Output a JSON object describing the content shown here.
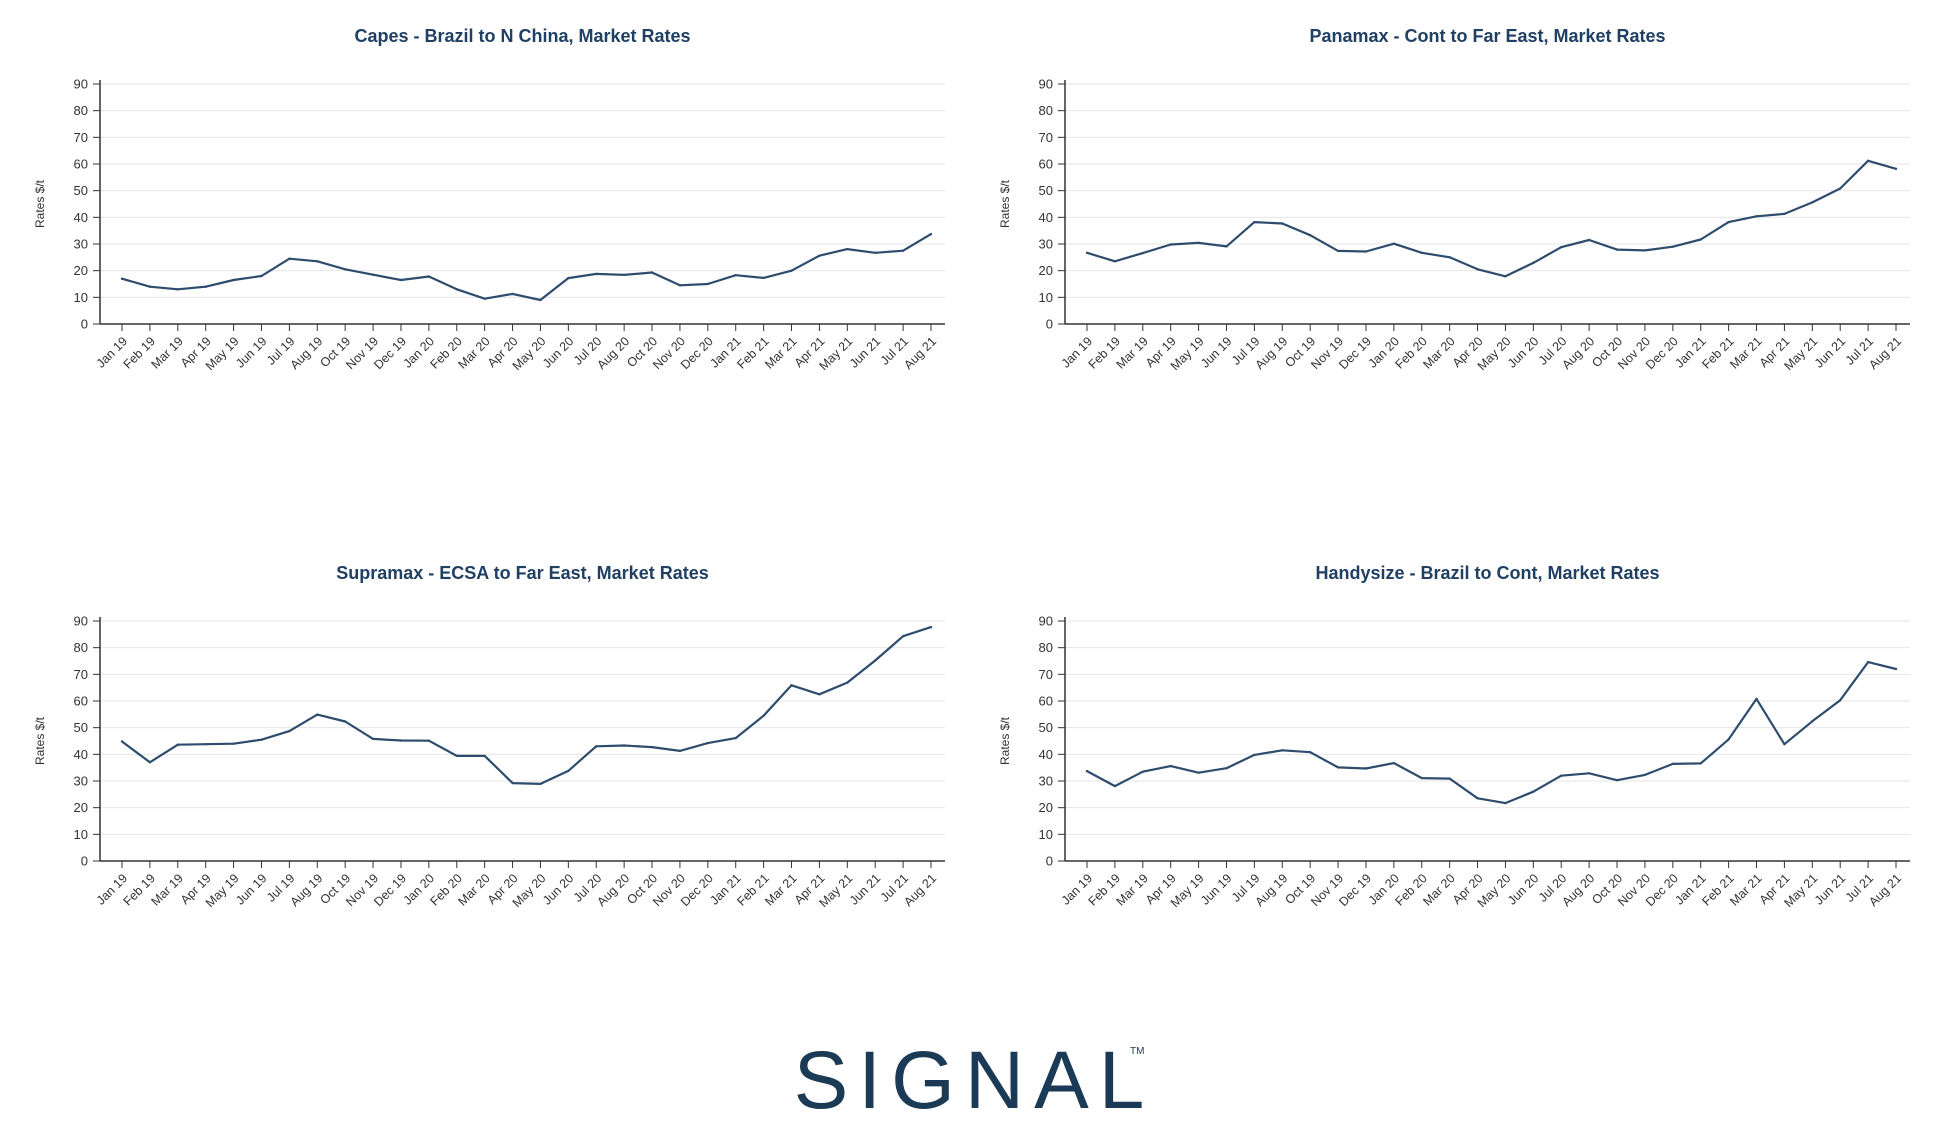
{
  "logo": {
    "text": "SIGNAL",
    "trademark": "TM",
    "color": "#1a3a55"
  },
  "chart_style": {
    "line_color": "#2e4c6d",
    "title_color": "#1f3f63",
    "grid_color": "#e6e6e6",
    "axis_color": "#333333"
  },
  "chart_data": [
    {
      "type": "line",
      "title": "Capes - Brazil to N China, Market Rates",
      "ylabel": "Rates $/t",
      "ylim": [
        0,
        90
      ],
      "yticks": [
        0,
        10,
        20,
        30,
        40,
        50,
        60,
        70,
        80,
        90
      ],
      "grid": true,
      "categories": [
        "Jan 19",
        "Feb 19",
        "Mar 19",
        "Apr 19",
        "May 19",
        "Jun 19",
        "Jul 19",
        "Aug 19",
        "Oct 19",
        "Nov 19",
        "Dec 19",
        "Jan 20",
        "Feb 20",
        "Mar 20",
        "Apr 20",
        "May 20",
        "Jun 20",
        "Jul 20",
        "Aug 20",
        "Oct 20",
        "Nov 20",
        "Dec 20",
        "Jan 21",
        "Feb 21",
        "Mar 21",
        "Apr 21",
        "May 21",
        "Jun 21",
        "Jul 21",
        "Aug 21"
      ],
      "values": [
        17,
        14,
        13,
        14,
        16.5,
        18,
        24.5,
        23.5,
        20.5,
        18.5,
        16.5,
        17.8,
        13,
        9.5,
        11.3,
        9,
        17.2,
        18.8,
        18.4,
        19.3,
        14.5,
        15,
        18.3,
        17.3,
        20,
        25.6,
        28.1,
        26.7,
        27.5,
        33.7
      ]
    },
    {
      "type": "line",
      "title": "Panamax - Cont to Far East, Market Rates",
      "ylabel": "Rates $/t",
      "ylim": [
        0,
        90
      ],
      "yticks": [
        0,
        10,
        20,
        30,
        40,
        50,
        60,
        70,
        80,
        90
      ],
      "grid": true,
      "categories": [
        "Jan 19",
        "Feb 19",
        "Mar 19",
        "Apr 19",
        "May 19",
        "Jun 19",
        "Jul 19",
        "Aug 19",
        "Oct 19",
        "Nov 19",
        "Dec 19",
        "Jan 20",
        "Feb 20",
        "Mar 20",
        "Apr 20",
        "May 20",
        "Jun 20",
        "Jul 20",
        "Aug 20",
        "Oct 20",
        "Nov 20",
        "Dec 20",
        "Jan 21",
        "Feb 21",
        "Mar 21",
        "Apr 21",
        "May 21",
        "Jun 21",
        "Jul 21",
        "Aug 21"
      ],
      "values": [
        26.7,
        23.5,
        26.6,
        29.8,
        30.4,
        29.1,
        38.2,
        37.7,
        33.3,
        27.4,
        27.2,
        30.1,
        26.7,
        25,
        20.5,
        17.9,
        22.9,
        28.8,
        31.5,
        27.9,
        27.6,
        29,
        31.7,
        38.2,
        40.4,
        41.3,
        45.6,
        50.8,
        61.2,
        58.2
      ]
    },
    {
      "type": "line",
      "title": "Supramax - ECSA to Far East, Market Rates",
      "ylabel": "Rates $/t",
      "ylim": [
        0,
        90
      ],
      "yticks": [
        0,
        10,
        20,
        30,
        40,
        50,
        60,
        70,
        80,
        90
      ],
      "grid": true,
      "categories": [
        "Jan 19",
        "Feb 19",
        "Mar 19",
        "Apr 19",
        "May 19",
        "Jun 19",
        "Jul 19",
        "Aug 19",
        "Oct 19",
        "Nov 19",
        "Dec 19",
        "Jan 20",
        "Feb 20",
        "Mar 20",
        "Apr 20",
        "May 20",
        "Jun 20",
        "Jul 20",
        "Aug 20",
        "Oct 20",
        "Nov 20",
        "Dec 20",
        "Jan 21",
        "Feb 21",
        "Mar 21",
        "Apr 21",
        "May 21",
        "Jun 21",
        "Jul 21",
        "Aug 21"
      ],
      "values": [
        44.8,
        37,
        43.6,
        43.8,
        44,
        45.5,
        48.7,
        54.9,
        52.3,
        45.8,
        45.2,
        45.1,
        39.4,
        39.4,
        29.2,
        28.9,
        33.8,
        43,
        43.3,
        42.7,
        41.3,
        44.2,
        46.1,
        54.5,
        65.9,
        62.5,
        66.9,
        75.2,
        84.3,
        87.7
      ]
    },
    {
      "type": "line",
      "title": "Handysize - Brazil to Cont, Market Rates",
      "ylabel": "Rates $/t",
      "ylim": [
        0,
        90
      ],
      "yticks": [
        0,
        10,
        20,
        30,
        40,
        50,
        60,
        70,
        80,
        90
      ],
      "grid": true,
      "categories": [
        "Jan 19",
        "Feb 19",
        "Mar 19",
        "Apr 19",
        "May 19",
        "Jun 19",
        "Jul 19",
        "Aug 19",
        "Oct 19",
        "Nov 19",
        "Dec 19",
        "Jan 20",
        "Feb 20",
        "Mar 20",
        "Apr 20",
        "May 20",
        "Jun 20",
        "Jul 20",
        "Aug 20",
        "Oct 20",
        "Nov 20",
        "Dec 20",
        "Jan 21",
        "Feb 21",
        "Mar 21",
        "Apr 21",
        "May 21",
        "Jun 21",
        "Jul 21",
        "Aug 21"
      ],
      "values": [
        33.7,
        28.1,
        33.5,
        35.6,
        33.1,
        34.8,
        39.8,
        41.5,
        40.8,
        35.1,
        34.7,
        36.7,
        31.1,
        30.9,
        23.5,
        21.7,
        26,
        32,
        32.9,
        30.3,
        32.3,
        36.4,
        36.6,
        45.6,
        60.8,
        43.8,
        52.4,
        60.3,
        74.6,
        72
      ]
    }
  ]
}
